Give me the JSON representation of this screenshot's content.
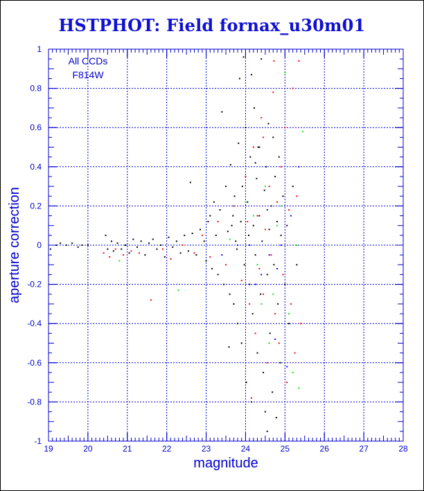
{
  "chart_data": {
    "type": "scatter",
    "title": "HSTPHOT: Field fornax_u30m01",
    "xlabel": "magnitude",
    "ylabel": "aperture correction",
    "xlim": [
      19,
      28
    ],
    "ylim": [
      -1,
      1
    ],
    "x_ticks": [
      19,
      20,
      21,
      22,
      23,
      24,
      25,
      26,
      27,
      28
    ],
    "y_ticks": [
      -1,
      -0.8,
      -0.6,
      -0.4,
      -0.2,
      0,
      0.2,
      0.4,
      0.6,
      0.8,
      1
    ],
    "x_tick_labels": [
      "19",
      "20",
      "21",
      "22",
      "23",
      "24",
      "25",
      "26",
      "27",
      "28"
    ],
    "y_tick_labels": [
      "-1",
      "-0.8",
      "-0.6",
      "-0.4",
      "-0.2",
      "0",
      "0.2",
      "0.4",
      "0.6",
      "0.8",
      "1"
    ],
    "grid": true,
    "annotations": [
      "All CCDs",
      "F814W"
    ],
    "colors": {
      "axis": "#0000cc",
      "grid": "#0000cc",
      "title": "#1010d0"
    },
    "series": [
      {
        "color": "#000000",
        "points": [
          [
            19.05,
            -0.02
          ],
          [
            19.2,
            0.0
          ],
          [
            19.3,
            0.01
          ],
          [
            19.45,
            0.0
          ],
          [
            19.6,
            0.01
          ],
          [
            19.75,
            -0.01
          ],
          [
            19.85,
            0.0
          ],
          [
            20.0,
            0.0
          ],
          [
            20.45,
            0.05
          ],
          [
            20.5,
            -0.02
          ],
          [
            20.6,
            0.02
          ],
          [
            20.65,
            -0.03
          ],
          [
            20.75,
            0.01
          ],
          [
            20.85,
            -0.02
          ],
          [
            20.95,
            0.0
          ],
          [
            21.05,
            -0.04
          ],
          [
            21.15,
            0.03
          ],
          [
            21.25,
            -0.01
          ],
          [
            21.35,
            0.02
          ],
          [
            21.45,
            -0.05
          ],
          [
            21.55,
            0.01
          ],
          [
            21.65,
            0.03
          ],
          [
            21.75,
            -0.02
          ],
          [
            21.85,
            0.0
          ],
          [
            21.95,
            -0.06
          ],
          [
            22.05,
            0.04
          ],
          [
            22.15,
            -0.01
          ],
          [
            22.25,
            0.02
          ],
          [
            22.35,
            -0.04
          ],
          [
            22.45,
            0.05
          ],
          [
            22.55,
            -0.03
          ],
          [
            22.6,
            0.32
          ],
          [
            22.65,
            0.06
          ],
          [
            22.75,
            -0.05
          ],
          [
            22.85,
            0.08
          ],
          [
            22.95,
            0.02
          ],
          [
            23.0,
            -0.08
          ],
          [
            23.05,
            0.12
          ],
          [
            23.1,
            0.15
          ],
          [
            23.15,
            -0.12
          ],
          [
            23.2,
            0.22
          ],
          [
            23.25,
            0.05
          ],
          [
            23.3,
            -0.15
          ],
          [
            23.35,
            0.18
          ],
          [
            23.4,
            0.68
          ],
          [
            23.45,
            -0.2
          ],
          [
            23.5,
            0.3
          ],
          [
            23.55,
            0.07
          ],
          [
            23.6,
            -0.25
          ],
          [
            23.62,
            0.41
          ],
          [
            23.65,
            0.1
          ],
          [
            23.7,
            -0.3
          ],
          [
            23.72,
            0.25
          ],
          [
            23.75,
            0.02
          ],
          [
            23.8,
            -0.4
          ],
          [
            23.82,
            0.52
          ],
          [
            23.85,
            0.85
          ],
          [
            23.88,
            0.12
          ],
          [
            23.9,
            -0.5
          ],
          [
            23.92,
            0.3
          ],
          [
            23.95,
            0.96
          ],
          [
            23.97,
            -0.1
          ],
          [
            24.0,
            0.6
          ],
          [
            24.02,
            -0.7
          ],
          [
            24.05,
            0.22
          ],
          [
            24.08,
            0.05
          ],
          [
            24.1,
            -0.2
          ],
          [
            24.12,
            0.45
          ],
          [
            24.15,
            0.87
          ],
          [
            24.18,
            -0.35
          ],
          [
            24.2,
            0.1
          ],
          [
            24.22,
            0.7
          ],
          [
            24.25,
            -0.05
          ],
          [
            24.28,
            0.34
          ],
          [
            24.3,
            -0.55
          ],
          [
            24.32,
            0.5
          ],
          [
            24.35,
            0.15
          ],
          [
            24.38,
            -0.25
          ],
          [
            24.4,
            0.95
          ],
          [
            24.42,
            0.02
          ],
          [
            24.45,
            -0.65
          ],
          [
            24.48,
            0.28
          ],
          [
            24.5,
            -0.85
          ],
          [
            24.52,
            0.4
          ],
          [
            24.55,
            -0.15
          ],
          [
            24.58,
            0.62
          ],
          [
            24.6,
            0.08
          ],
          [
            24.62,
            -0.45
          ],
          [
            24.65,
            0.2
          ],
          [
            24.68,
            -0.75
          ],
          [
            24.7,
            0.55
          ],
          [
            24.72,
            -0.1
          ],
          [
            24.75,
            0.35
          ],
          [
            24.78,
            -0.88
          ],
          [
            24.8,
            0.12
          ],
          [
            24.82,
            -0.3
          ],
          [
            24.85,
            0.45
          ],
          [
            24.88,
            -0.6
          ],
          [
            24.9,
            0.05
          ],
          [
            24.95,
            0.25
          ],
          [
            25.0,
            -0.2
          ],
          [
            25.05,
            0.1
          ],
          [
            25.1,
            -0.4
          ],
          [
            25.2,
            0.3
          ],
          [
            25.3,
            -0.1
          ],
          [
            24.35,
            0.5
          ],
          [
            24.55,
            -0.95
          ],
          [
            24.15,
            -0.8
          ],
          [
            23.58,
            -0.52
          ],
          [
            23.68,
            0.15
          ],
          [
            23.78,
            -0.02
          ],
          [
            24.25,
            0.42
          ]
        ]
      },
      {
        "color": "#ff0000",
        "points": [
          [
            20.4,
            -0.04
          ],
          [
            20.55,
            -0.06
          ],
          [
            20.7,
            -0.02
          ],
          [
            20.9,
            -0.05
          ],
          [
            21.1,
            -0.03
          ],
          [
            21.3,
            -0.04
          ],
          [
            21.6,
            -0.28
          ],
          [
            21.9,
            -0.02
          ],
          [
            22.1,
            -0.07
          ],
          [
            22.4,
            0.0
          ],
          [
            22.7,
            -0.04
          ],
          [
            22.9,
            0.05
          ],
          [
            23.1,
            -0.06
          ],
          [
            23.3,
            0.12
          ],
          [
            23.5,
            -0.1
          ],
          [
            23.7,
            0.2
          ],
          [
            23.9,
            -0.18
          ],
          [
            24.0,
            0.35
          ],
          [
            24.1,
            -0.3
          ],
          [
            24.2,
            0.5
          ],
          [
            24.25,
            -0.45
          ],
          [
            24.3,
            0.15
          ],
          [
            24.35,
            -0.12
          ],
          [
            24.4,
            0.65
          ],
          [
            24.45,
            -0.25
          ],
          [
            24.5,
            0.08
          ],
          [
            24.55,
            -0.6
          ],
          [
            24.6,
            0.3
          ],
          [
            24.65,
            -0.05
          ],
          [
            24.7,
            0.78
          ],
          [
            24.72,
            0.94
          ],
          [
            24.75,
            -0.35
          ],
          [
            24.8,
            0.22
          ],
          [
            24.85,
            -0.5
          ],
          [
            24.9,
            0.4
          ],
          [
            24.95,
            -0.15
          ],
          [
            25.0,
            0.6
          ],
          [
            25.05,
            -0.7
          ],
          [
            25.1,
            0.18
          ],
          [
            25.15,
            -0.3
          ],
          [
            25.2,
            0.8
          ],
          [
            25.25,
            -0.55
          ],
          [
            25.3,
            0.25
          ],
          [
            25.35,
            0.94
          ],
          [
            25.4,
            -0.4
          ],
          [
            24.15,
            -0.78
          ],
          [
            24.45,
            0.55
          ],
          [
            24.05,
            0.12
          ]
        ]
      },
      {
        "color": "#00ee00",
        "points": [
          [
            20.8,
            -0.08
          ],
          [
            22.3,
            -0.23
          ],
          [
            23.6,
            0.03
          ],
          [
            24.0,
            0.22
          ],
          [
            24.3,
            -0.1
          ],
          [
            24.5,
            0.3
          ],
          [
            24.6,
            -0.5
          ],
          [
            24.8,
            0.1
          ],
          [
            25.0,
            0.88
          ],
          [
            25.1,
            -0.35
          ],
          [
            25.2,
            -0.65
          ],
          [
            25.35,
            -0.73
          ],
          [
            25.45,
            0.58
          ],
          [
            24.9,
            0.2
          ],
          [
            24.7,
            -0.25
          ],
          [
            24.4,
            -0.3
          ],
          [
            25.3,
            0.0
          ],
          [
            24.2,
            0.15
          ]
        ]
      },
      {
        "color": "#0000ff",
        "points": [
          [
            23.4,
            -0.05
          ],
          [
            23.8,
            0.0
          ],
          [
            24.1,
            0.0
          ],
          [
            24.4,
            -0.15
          ],
          [
            24.6,
            -0.05
          ],
          [
            24.8,
            -0.12
          ],
          [
            25.05,
            -0.62
          ],
          [
            25.35,
            0.4
          ],
          [
            24.9,
            0.0
          ],
          [
            24.55,
            0.18
          ],
          [
            24.25,
            -0.2
          ],
          [
            25.15,
            0.15
          ],
          [
            24.75,
            -0.48
          ]
        ]
      }
    ]
  }
}
